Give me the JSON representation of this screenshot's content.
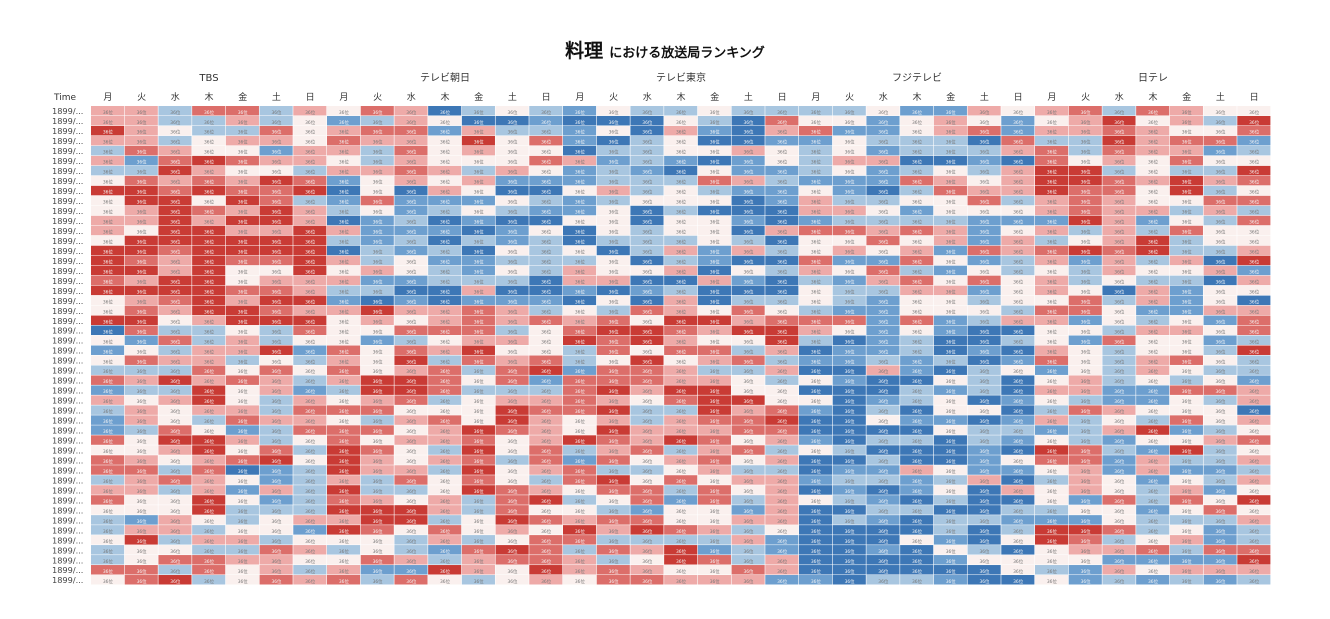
{
  "title": {
    "main": "料理",
    "sub": "における放送局ランキング"
  },
  "chart_data": {
    "type": "heatmap",
    "row_header": "Time",
    "row_label": "1899/...",
    "row_count": 48,
    "cell_text": "36位",
    "stations": [
      "TBS",
      "テレビ朝日",
      "テレビ東京",
      "フジテレビ",
      "日テレ"
    ],
    "days": [
      "月",
      "火",
      "水",
      "木",
      "金",
      "土",
      "日"
    ],
    "colors": {
      "high_rank_dark": "#c93b35",
      "high_rank_mid": "#dc6e6a",
      "high_rank_light": "#eeaaa8",
      "neutral": "#faf0ee",
      "low_rank_light": "#a8c6e0",
      "low_rank_mid": "#6d9fcf",
      "low_rank_dark": "#3d77b6"
    }
  }
}
